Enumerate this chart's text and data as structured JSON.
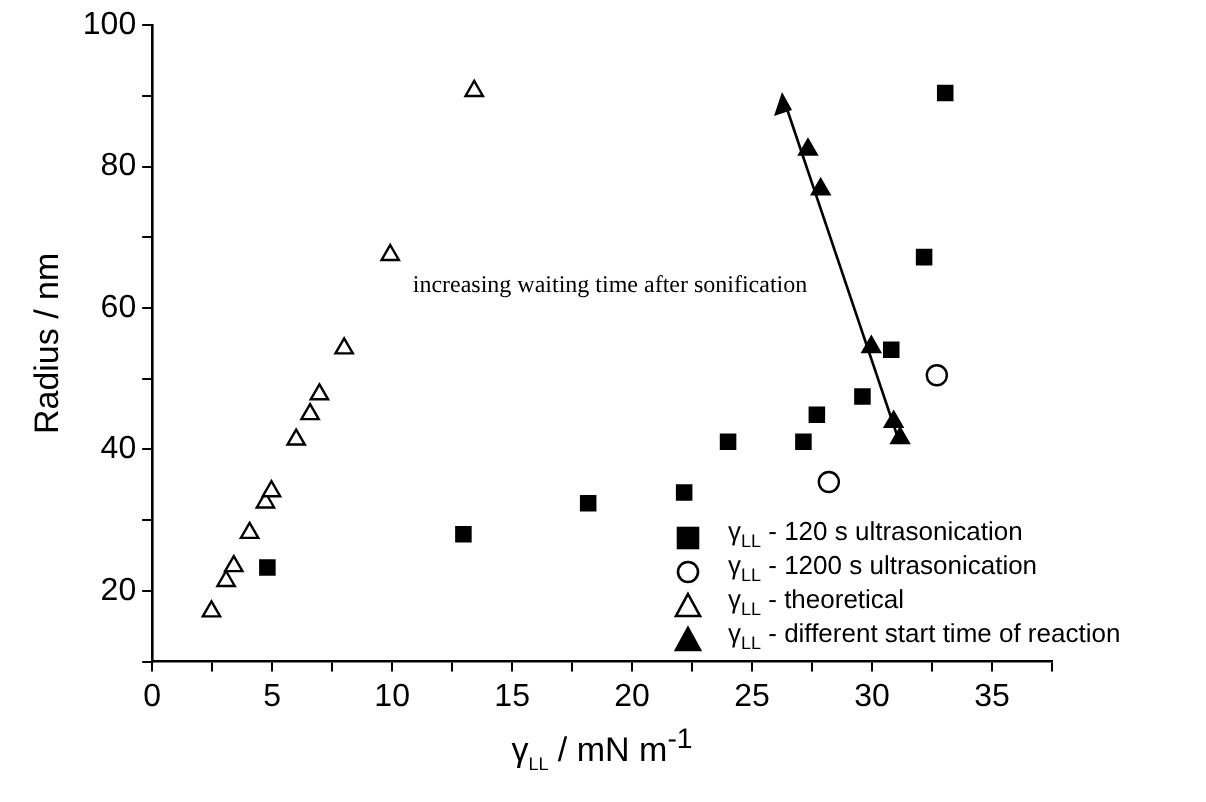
{
  "chart_data": {
    "type": "scatter",
    "xlabel": "γ$_{LL}$ / mN m$^{-1}$",
    "ylabel": "Radius / nm",
    "xlim": [
      0,
      37.5
    ],
    "ylim": [
      10,
      100
    ],
    "xticks": [
      0,
      {
        "value": 2.5,
        "label": null
      },
      5,
      {
        "value": 7.5,
        "label": null
      },
      10,
      {
        "value": 12.5,
        "label": null
      },
      15,
      {
        "value": 17.5,
        "label": null
      },
      20,
      {
        "value": 22.5,
        "label": null
      },
      25,
      {
        "value": 27.5,
        "label": null
      },
      30,
      {
        "value": 32.5,
        "label": null
      },
      35,
      {
        "value": 37.5,
        "label": null
      }
    ],
    "yticks": [
      {
        "value": 10,
        "label": null
      },
      20,
      {
        "value": 30,
        "label": null
      },
      40,
      {
        "value": 50,
        "label": null
      },
      60,
      {
        "value": 70,
        "label": null
      },
      80,
      {
        "value": 90,
        "label": null
      },
      100
    ],
    "grid": false,
    "legend": "bottom right",
    "annotations": [
      "increasing waiting time after sonification"
    ],
    "series": [
      {
        "name": "γ$_{LL}$ - 120 s ultrasonication",
        "color": "#000000",
        "marker": "square",
        "x": [
          4.8,
          12.97,
          18.17,
          22.17,
          24.0,
          27.14,
          27.7,
          29.6,
          30.8,
          32.17,
          33.05
        ],
        "values": [
          23.3,
          28.0,
          32.4,
          33.9,
          41.1,
          41.1,
          44.9,
          47.5,
          54.1,
          67.2,
          90.4
        ]
      },
      {
        "name": "γ$_{LL}$ - 1200 s ultrasonication",
        "color": "#ffffff",
        "marker": "circle",
        "x": [
          28.2,
          32.7
        ],
        "values": [
          35.4,
          50.5
        ]
      },
      {
        "name": "γ$_{LL}$ - theoretical",
        "color": "#ffffff",
        "marker": "triangle",
        "x": [
          2.47,
          3.08,
          3.4,
          4.06,
          4.72,
          4.97,
          6.0,
          6.58,
          6.97,
          8.0,
          9.92,
          13.42
        ],
        "values": [
          17.1,
          21.4,
          23.5,
          28.2,
          32.5,
          34.1,
          41.4,
          45.0,
          47.8,
          54.3,
          67.5,
          90.7
        ]
      },
      {
        "name": "γ$_{LL}$ - different start time of reaction",
        "color": "#000000",
        "marker": "triangle",
        "x": [
          27.33,
          27.86,
          29.97,
          30.9,
          31.17
        ],
        "values": [
          82.4,
          76.8,
          54.5,
          43.9,
          41.6
        ]
      }
    ]
  }
}
